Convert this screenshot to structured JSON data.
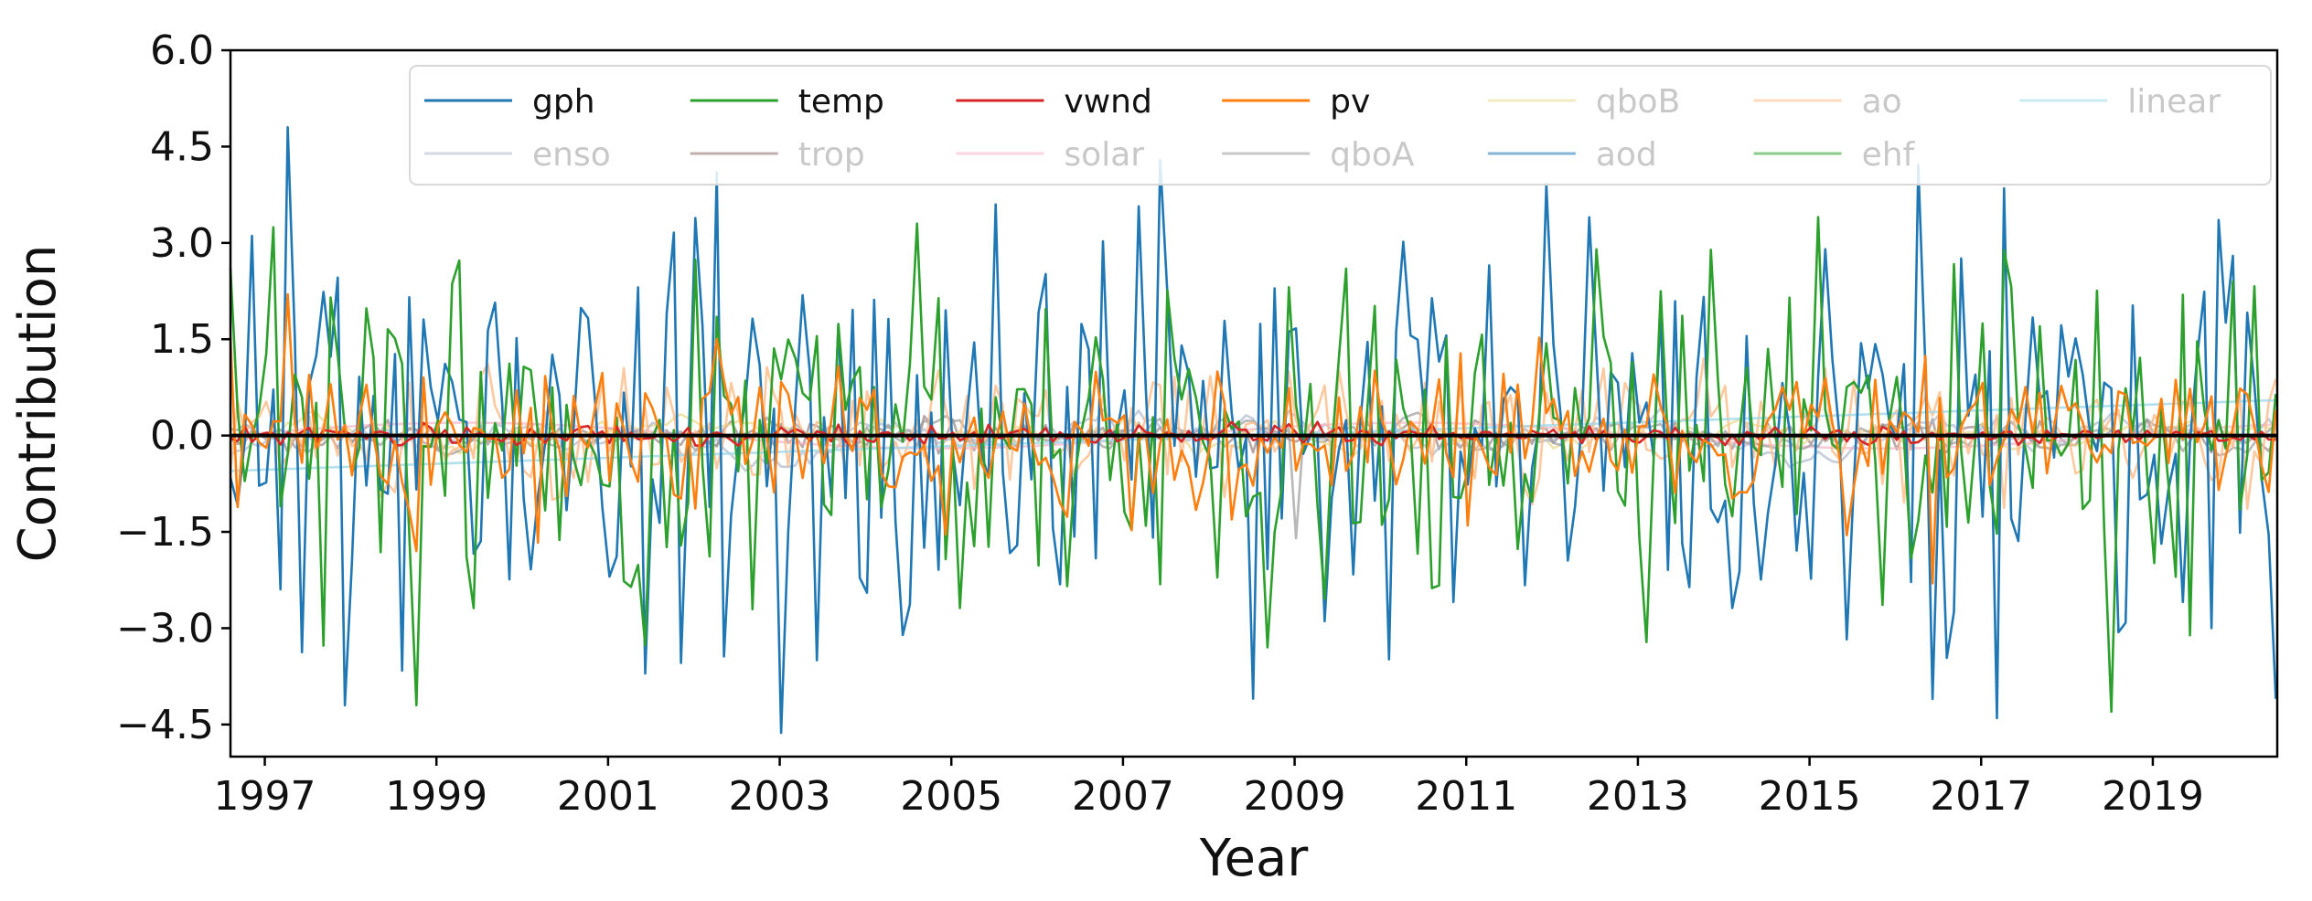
{
  "chart_data": {
    "type": "line",
    "title": "",
    "xlabel": "Year",
    "ylabel": "Contribution",
    "xlim": [
      1996.6,
      2020.45
    ],
    "ylim": [
      -5.0,
      6.0
    ],
    "yticks": [
      -4.5,
      -3.0,
      -1.5,
      0.0,
      1.5,
      3.0,
      4.5,
      6.0
    ],
    "ytick_labels": [
      "−4.5",
      "−3.0",
      "−1.5",
      "0.0",
      "1.5",
      "3.0",
      "4.5",
      "6.0"
    ],
    "xticks": [
      1997,
      1999,
      2001,
      2003,
      2005,
      2007,
      2009,
      2011,
      2013,
      2015,
      2017,
      2019
    ],
    "xtick_labels": [
      "1997",
      "1999",
      "2001",
      "2003",
      "2005",
      "2007",
      "2009",
      "2011",
      "2013",
      "2015",
      "2017",
      "2019"
    ],
    "legend_location": "top",
    "zero_line": true,
    "series": [
      {
        "name": "gph",
        "color": "#1f77b4",
        "alpha": 1.0,
        "seed": 11,
        "amp": 1.7,
        "peaks": [
          [
            1997.3,
            4.8
          ],
          [
            1997.9,
            -4.2
          ],
          [
            2002.3,
            4.1
          ],
          [
            2005.5,
            3.6
          ],
          [
            2003.4,
            -3.5
          ],
          [
            2012.4,
            3.4
          ],
          [
            2016.4,
            -4.1
          ],
          [
            2017.2,
            -4.4
          ],
          [
            2019.9,
            2.8
          ],
          [
            2020.4,
            -4.1
          ]
        ]
      },
      {
        "name": "temp",
        "color": "#2ca02c",
        "alpha": 1.0,
        "seed": 23,
        "amp": 1.35,
        "peaks": [
          [
            1998.8,
            -4.2
          ],
          [
            2004.6,
            3.3
          ],
          [
            2008.7,
            -3.3
          ],
          [
            2009.6,
            2.6
          ],
          [
            2012.5,
            2.9
          ],
          [
            2018.5,
            -4.3
          ],
          [
            2019.9,
            2.4
          ]
        ]
      },
      {
        "name": "vwnd",
        "color": "#d62728",
        "alpha": 1.0,
        "seed": 31,
        "amp": 0.08,
        "peaks": []
      },
      {
        "name": "pv",
        "color": "#ff7f0e",
        "alpha": 1.0,
        "seed": 47,
        "amp": 0.6,
        "peaks": [
          [
            1997.3,
            2.2
          ],
          [
            2002.3,
            1.5
          ],
          [
            2016.4,
            -2.3
          ],
          [
            1998.8,
            -1.8
          ]
        ]
      },
      {
        "name": "qboB",
        "color": "#e8d98c",
        "alpha": 0.7,
        "seed": 5,
        "amp": 0.22,
        "smooth": true,
        "peaks": []
      },
      {
        "name": "ao",
        "color": "#ffbb88",
        "alpha": 0.8,
        "seed": 59,
        "amp": 0.5,
        "peaks": [
          [
            2013.8,
            1.2
          ]
        ]
      },
      {
        "name": "linear",
        "color": "#9fd8e8",
        "alpha": 0.8,
        "seed": 0,
        "amp": 0.0,
        "linear": [
          -0.55,
          0.55
        ],
        "peaks": []
      },
      {
        "name": "enso",
        "color": "#aeb8cc",
        "alpha": 0.7,
        "seed": 71,
        "amp": 0.3,
        "smooth": true,
        "peaks": []
      },
      {
        "name": "trop",
        "color": "#8c6d6d",
        "alpha": 0.6,
        "seed": 83,
        "amp": 0.12,
        "peaks": []
      },
      {
        "name": "solar",
        "color": "#f5b5c8",
        "alpha": 0.7,
        "seed": 0,
        "amp": 0.0,
        "sine": [
          0.2,
          11.0
        ],
        "peaks": []
      },
      {
        "name": "qboA",
        "color": "#9a9a9a",
        "alpha": 0.7,
        "seed": 97,
        "amp": 0.25,
        "smooth": true,
        "peaks": [
          [
            2009.0,
            -1.6
          ]
        ]
      },
      {
        "name": "aod",
        "color": "#1f77b4",
        "alpha": 0.6,
        "seed": 0,
        "amp": 0.0,
        "peaks": []
      },
      {
        "name": "ehf",
        "color": "#2ca02c",
        "alpha": 0.6,
        "seed": 0,
        "amp": 0.0,
        "peaks": []
      }
    ],
    "legend": [
      {
        "name": "gph",
        "color": "#1f77b4",
        "text_color": "#111111"
      },
      {
        "name": "temp",
        "color": "#2ca02c",
        "text_color": "#111111"
      },
      {
        "name": "vwnd",
        "color": "#d62728",
        "text_color": "#111111"
      },
      {
        "name": "pv",
        "color": "#ff7f0e",
        "text_color": "#111111"
      },
      {
        "name": "qboB",
        "color": "#e8d98c",
        "text_color": "#c8c8c8"
      },
      {
        "name": "ao",
        "color": "#ffbb88",
        "text_color": "#c8c8c8"
      },
      {
        "name": "linear",
        "color": "#9fd8e8",
        "text_color": "#c8c8c8"
      },
      {
        "name": "enso",
        "color": "#aeb8cc",
        "text_color": "#c8c8c8"
      },
      {
        "name": "trop",
        "color": "#8c6d6d",
        "text_color": "#c8c8c8"
      },
      {
        "name": "solar",
        "color": "#f5b5c8",
        "text_color": "#c8c8c8"
      },
      {
        "name": "qboA",
        "color": "#9a9a9a",
        "text_color": "#c8c8c8"
      },
      {
        "name": "aod",
        "color": "#1f77b4",
        "text_color": "#c8c8c8"
      },
      {
        "name": "ehf",
        "color": "#2ca02c",
        "text_color": "#c8c8c8"
      }
    ]
  }
}
